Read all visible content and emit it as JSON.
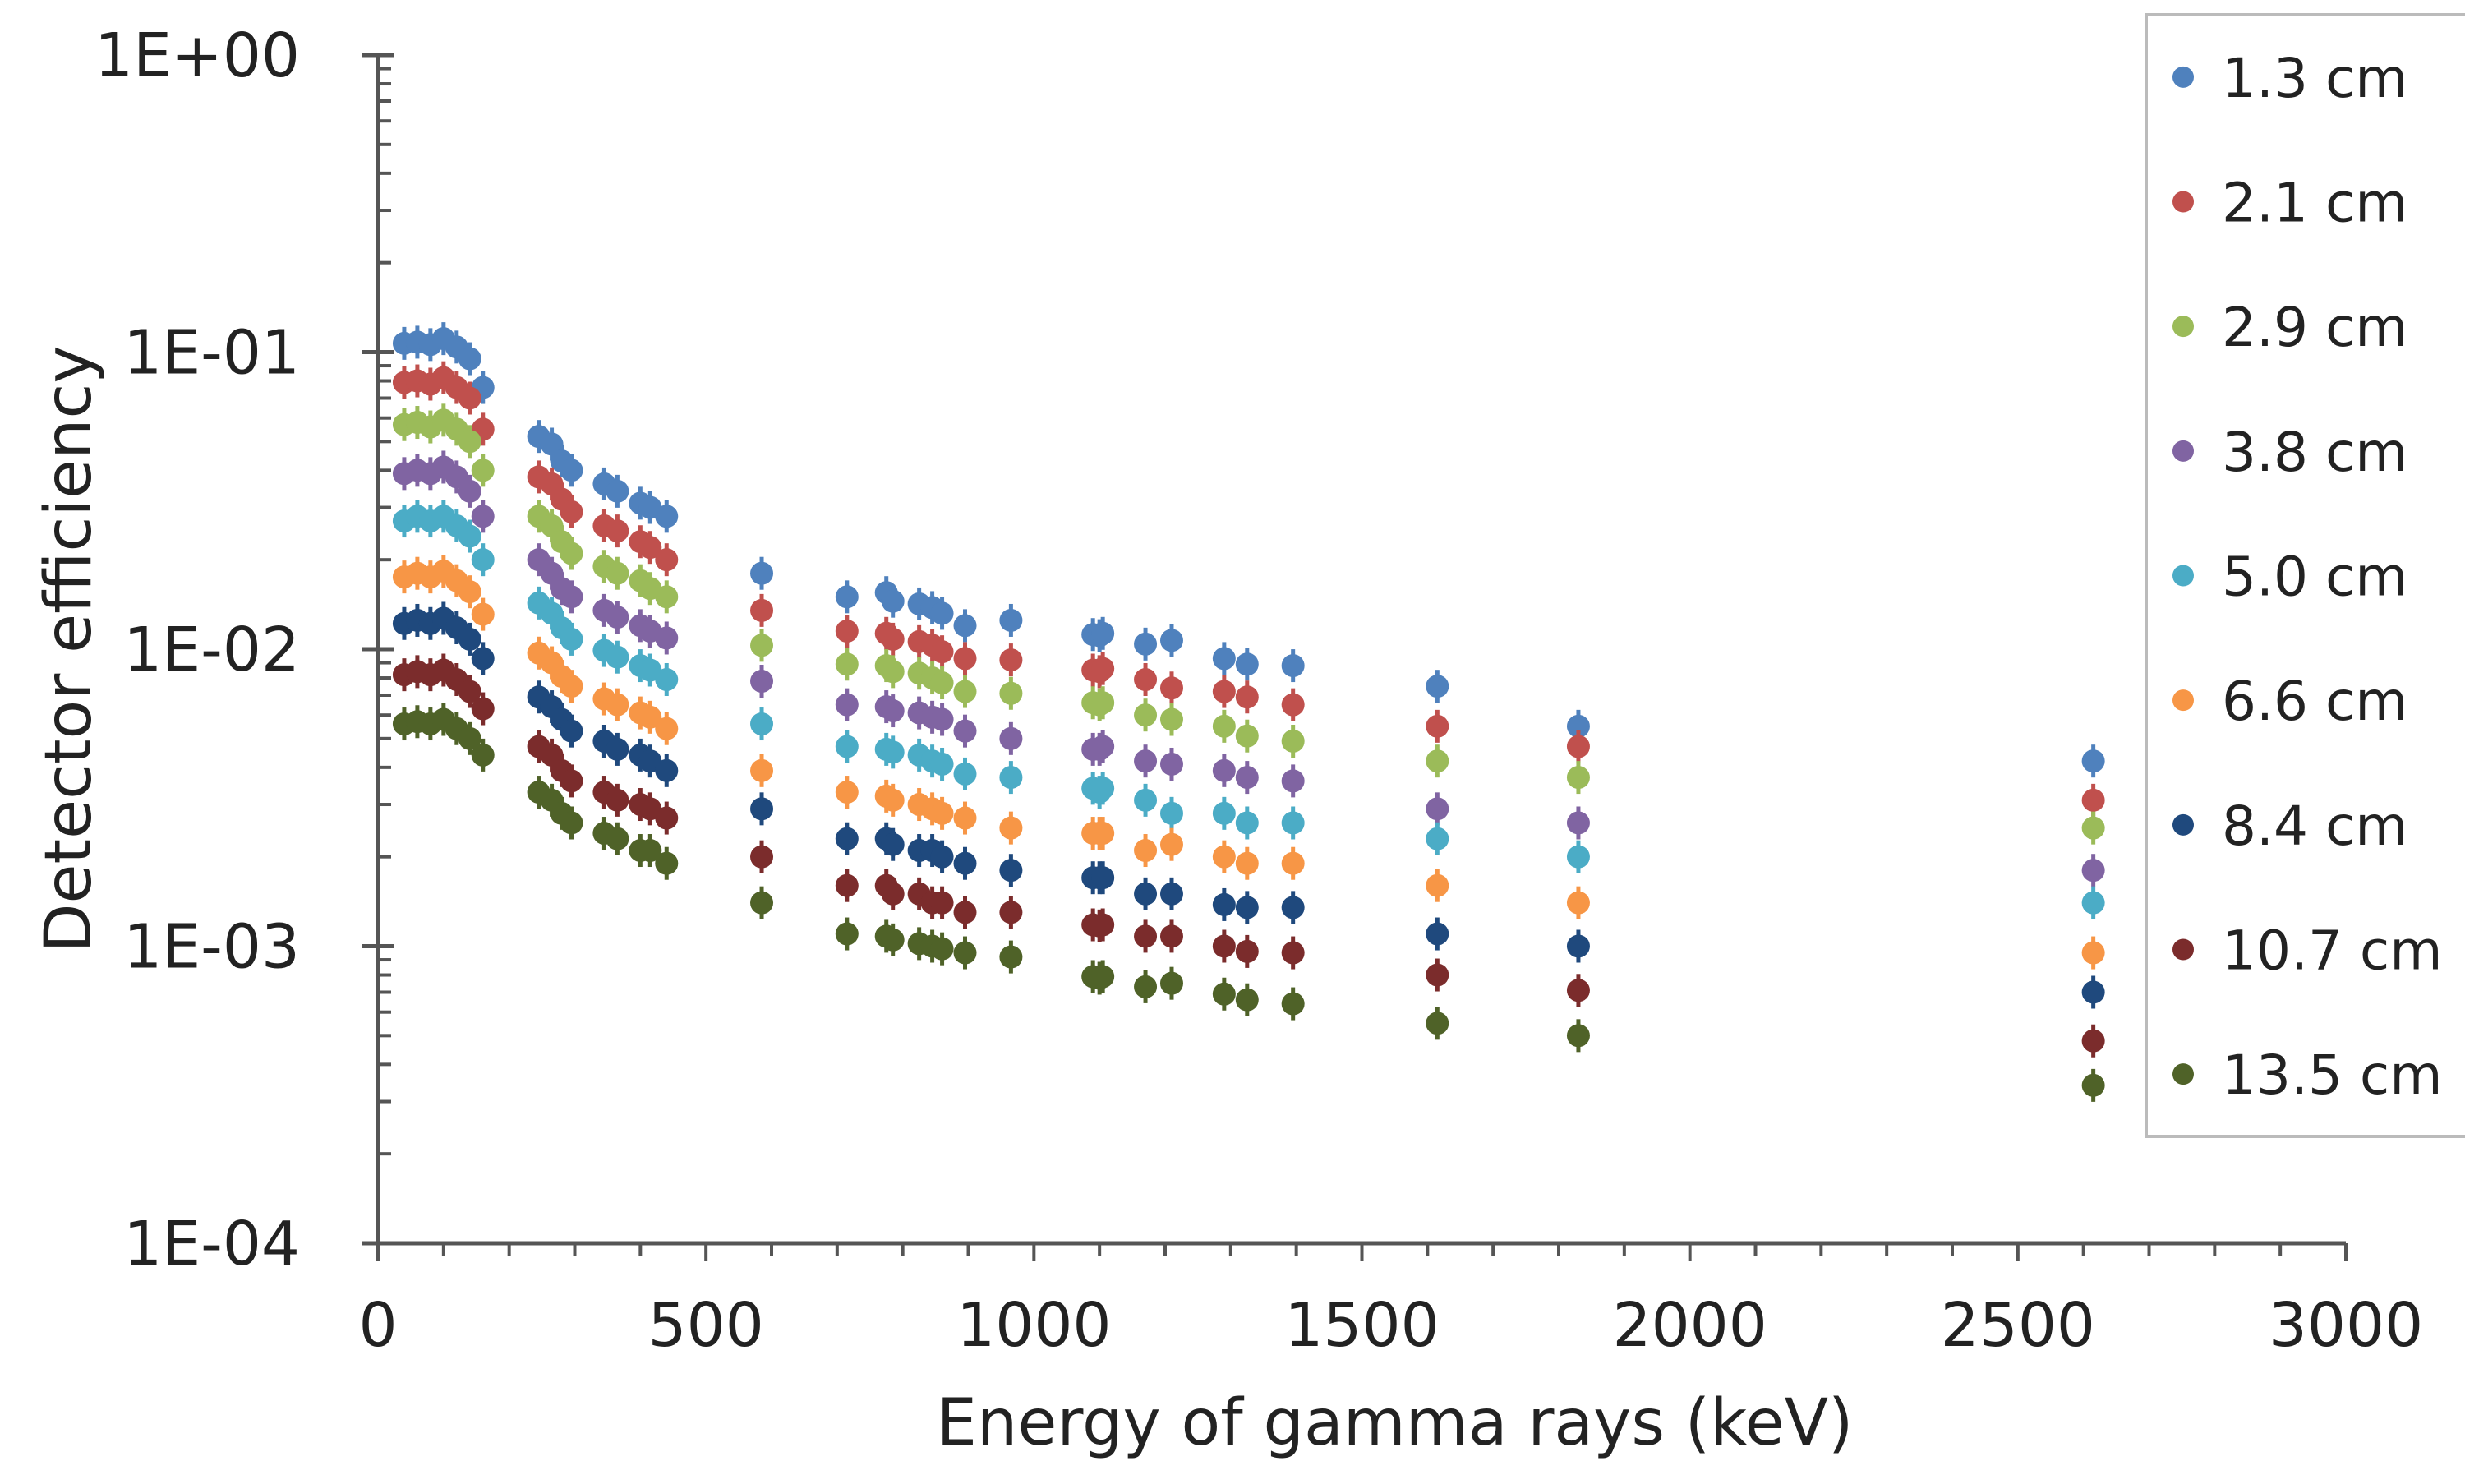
{
  "chart_data": {
    "type": "scatter",
    "xlabel": "Energy of gamma rays (keV)",
    "ylabel": "Detector efficiency",
    "xlim": [
      0,
      3000
    ],
    "ylim": [
      0.0001,
      1
    ],
    "y_scale": "log",
    "x_ticks": [
      "0",
      "500",
      "1000",
      "1500",
      "2000",
      "2500",
      "3000"
    ],
    "x_tick_values": [
      0,
      500,
      1000,
      1500,
      2000,
      2500,
      3000
    ],
    "y_ticks": [
      "1E+00",
      "1E-01",
      "1E-02",
      "1E-03",
      "1E-04"
    ],
    "y_tick_values": [
      1,
      0.1,
      0.01,
      0.001,
      0.0001
    ],
    "grid": false,
    "legend_position": "right",
    "x": [
      40,
      60,
      80,
      100,
      120,
      140,
      160,
      245,
      265,
      280,
      295,
      345,
      365,
      400,
      415,
      440,
      585,
      715,
      775,
      785,
      825,
      845,
      860,
      895,
      965,
      1090,
      1100,
      1105,
      1170,
      1210,
      1290,
      1325,
      1395,
      1615,
      1830,
      2615
    ],
    "series": [
      {
        "name": "1.3 cm",
        "color": "#4f81bd",
        "values": [
          0.107,
          0.108,
          0.106,
          0.111,
          0.104,
          0.095,
          0.076,
          0.052,
          0.049,
          0.043,
          0.04,
          0.036,
          0.034,
          0.031,
          0.03,
          0.028,
          0.018,
          0.015,
          0.0155,
          0.0145,
          0.0142,
          0.0138,
          0.0132,
          0.012,
          0.0125,
          0.0112,
          0.0111,
          0.0113,
          0.0104,
          0.0107,
          0.0093,
          0.0089,
          0.0088,
          0.0075,
          0.0055,
          0.0042
        ]
      },
      {
        "name": "2.1 cm",
        "color": "#c0504d",
        "values": [
          0.079,
          0.08,
          0.078,
          0.082,
          0.076,
          0.07,
          0.055,
          0.038,
          0.036,
          0.032,
          0.029,
          0.026,
          0.025,
          0.023,
          0.022,
          0.02,
          0.0135,
          0.0115,
          0.0113,
          0.0108,
          0.0106,
          0.0103,
          0.0098,
          0.0093,
          0.0092,
          0.0085,
          0.0084,
          0.0086,
          0.0079,
          0.0074,
          0.0072,
          0.0069,
          0.0065,
          0.0055,
          0.0047,
          0.0031
        ]
      },
      {
        "name": "2.9 cm",
        "color": "#9bbb59",
        "values": [
          0.057,
          0.058,
          0.056,
          0.059,
          0.055,
          0.05,
          0.04,
          0.028,
          0.026,
          0.023,
          0.021,
          0.019,
          0.018,
          0.017,
          0.016,
          0.015,
          0.0103,
          0.0089,
          0.0088,
          0.0084,
          0.0083,
          0.008,
          0.0077,
          0.0072,
          0.0071,
          0.0066,
          0.0065,
          0.0066,
          0.006,
          0.0058,
          0.0055,
          0.0051,
          0.0049,
          0.0042,
          0.0037,
          0.0025
        ]
      },
      {
        "name": "3.8 cm",
        "color": "#8064a2",
        "values": [
          0.039,
          0.04,
          0.039,
          0.041,
          0.038,
          0.034,
          0.028,
          0.02,
          0.018,
          0.016,
          0.015,
          0.0135,
          0.0128,
          0.012,
          0.0115,
          0.0109,
          0.0078,
          0.0065,
          0.0064,
          0.0062,
          0.0061,
          0.0059,
          0.0058,
          0.0053,
          0.005,
          0.0046,
          0.0046,
          0.0047,
          0.0042,
          0.0041,
          0.0039,
          0.0037,
          0.0036,
          0.0029,
          0.0026,
          0.0018
        ]
      },
      {
        "name": "5.0 cm",
        "color": "#4bacc6",
        "values": [
          0.027,
          0.028,
          0.027,
          0.028,
          0.026,
          0.024,
          0.02,
          0.0143,
          0.0132,
          0.0118,
          0.0108,
          0.0099,
          0.0094,
          0.0088,
          0.0085,
          0.0079,
          0.0056,
          0.0047,
          0.0046,
          0.0045,
          0.0044,
          0.0042,
          0.0041,
          0.0038,
          0.0037,
          0.0034,
          0.0033,
          0.0034,
          0.0031,
          0.0028,
          0.0028,
          0.0026,
          0.0026,
          0.0023,
          0.002,
          0.0014
        ]
      },
      {
        "name": "6.6 cm",
        "color": "#f79646",
        "values": [
          0.0175,
          0.018,
          0.0175,
          0.0183,
          0.017,
          0.0156,
          0.0131,
          0.0097,
          0.009,
          0.0081,
          0.0075,
          0.0068,
          0.0065,
          0.0061,
          0.0059,
          0.0054,
          0.0039,
          0.0033,
          0.0032,
          0.0031,
          0.003,
          0.0029,
          0.0028,
          0.0027,
          0.0025,
          0.0024,
          0.0024,
          0.0024,
          0.0021,
          0.0022,
          0.002,
          0.0019,
          0.0019,
          0.0016,
          0.0014,
          0.00095
        ]
      },
      {
        "name": "8.4 cm",
        "color": "#1f497d",
        "values": [
          0.0122,
          0.0125,
          0.0122,
          0.0127,
          0.0118,
          0.0108,
          0.0093,
          0.0069,
          0.0064,
          0.0058,
          0.0053,
          0.0049,
          0.0046,
          0.0044,
          0.0042,
          0.0039,
          0.0029,
          0.0023,
          0.0023,
          0.0022,
          0.0021,
          0.0021,
          0.002,
          0.0019,
          0.0018,
          0.0017,
          0.0017,
          0.0017,
          0.0015,
          0.0015,
          0.00138,
          0.00135,
          0.00135,
          0.0011,
          0.001,
          0.0007
        ]
      },
      {
        "name": "10.7 cm",
        "color": "#7b2c2c",
        "values": [
          0.0082,
          0.0084,
          0.0082,
          0.0085,
          0.0079,
          0.0072,
          0.0063,
          0.0047,
          0.0044,
          0.0039,
          0.0036,
          0.0033,
          0.0031,
          0.003,
          0.0029,
          0.0027,
          0.002,
          0.0016,
          0.0016,
          0.0015,
          0.0015,
          0.0014,
          0.0014,
          0.0013,
          0.0013,
          0.00118,
          0.00117,
          0.00118,
          0.00108,
          0.00108,
          0.001,
          0.00096,
          0.00095,
          0.0008,
          0.00071,
          0.00048
        ]
      },
      {
        "name": "13.5 cm",
        "color": "#4f6228",
        "values": [
          0.0056,
          0.0057,
          0.0056,
          0.0058,
          0.0054,
          0.005,
          0.0044,
          0.0033,
          0.0031,
          0.0028,
          0.0026,
          0.0024,
          0.0023,
          0.0021,
          0.0021,
          0.0019,
          0.0014,
          0.0011,
          0.00108,
          0.00105,
          0.00102,
          0.001,
          0.00098,
          0.00095,
          0.00092,
          0.00079,
          0.00078,
          0.00079,
          0.00073,
          0.00075,
          0.00069,
          0.00066,
          0.00064,
          0.00055,
          0.0005,
          0.00034
        ]
      }
    ]
  }
}
